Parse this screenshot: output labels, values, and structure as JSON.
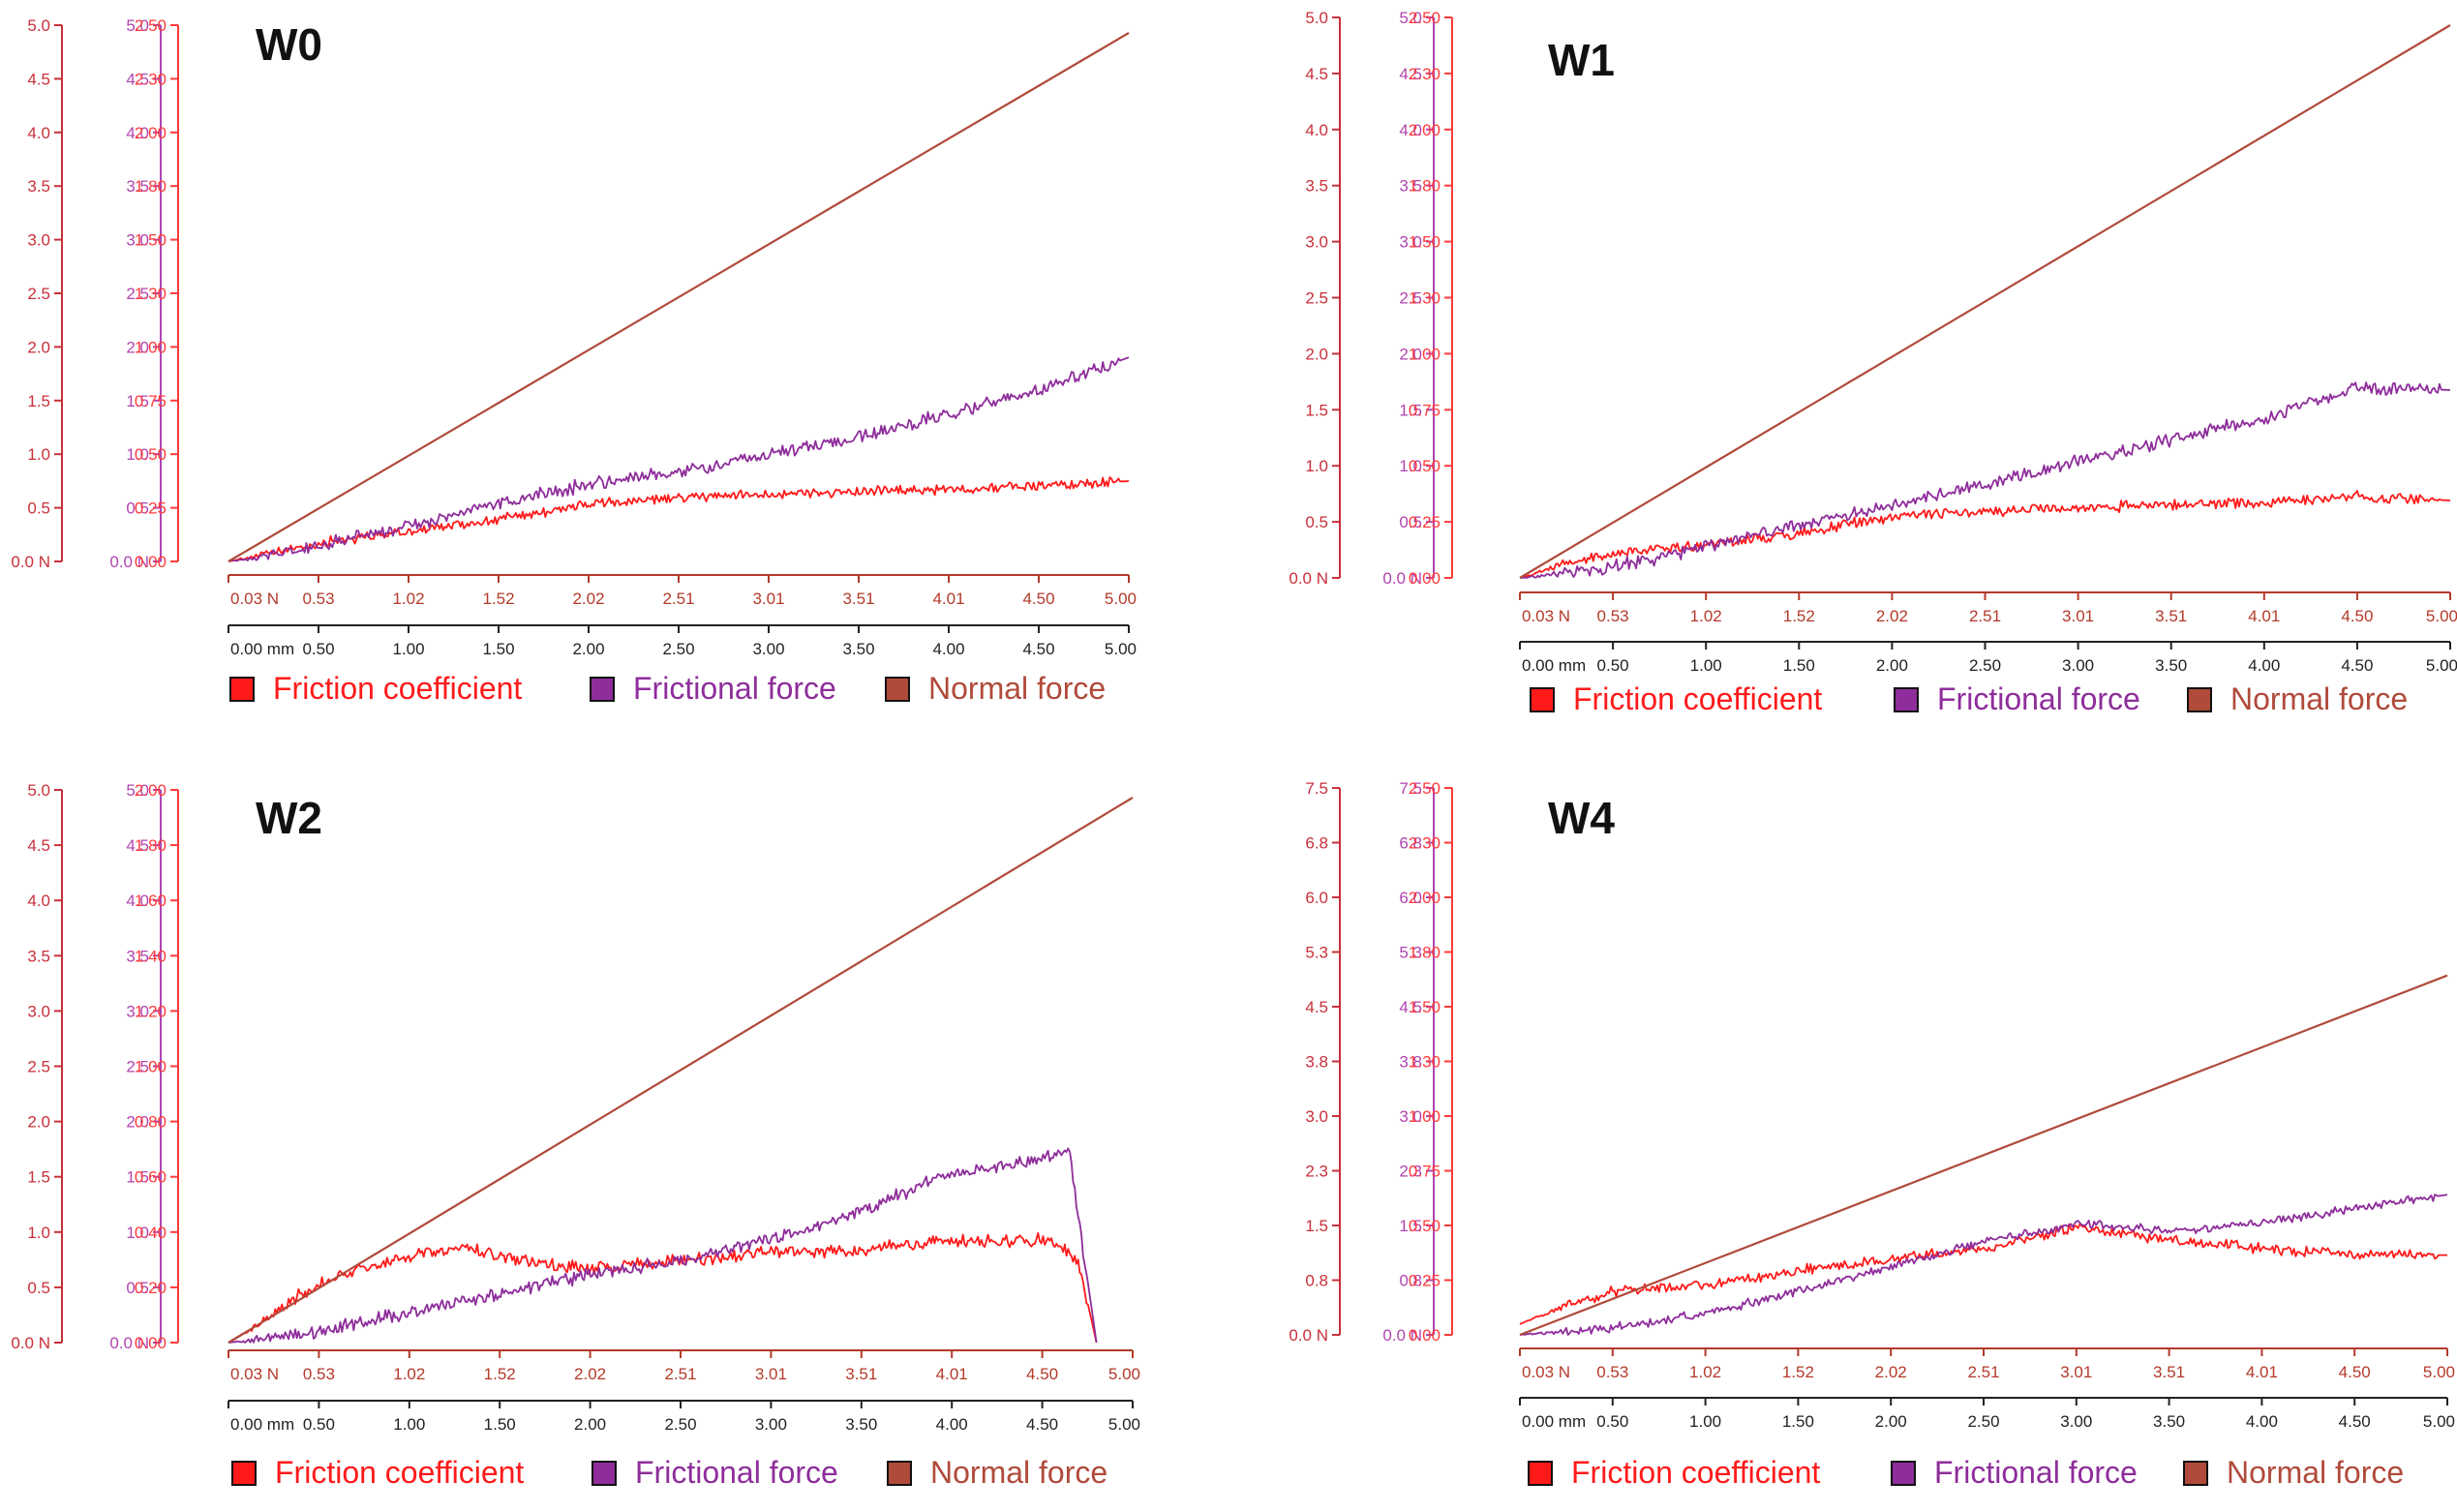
{
  "colors": {
    "friction": "#ff1a1a",
    "frictional": "#8e2d9b",
    "normal": "#b04a3a",
    "axis_n": "#c8303a",
    "axis_f": "#b045b0",
    "axis_mu": "#ff3a3a",
    "axis_x": "#b33a2a",
    "axis_mm": "#222222"
  },
  "chart_data": [
    {
      "type": "line",
      "title": "W0",
      "axis_normal_force": {
        "ticks": [
          "5.0",
          "4.5",
          "4.0",
          "3.5",
          "3.0",
          "2.5",
          "2.0",
          "1.5",
          "1.0",
          "0.5",
          "0.0 N"
        ],
        "range": [
          0,
          5.0
        ]
      },
      "axis_frictional_force": {
        "ticks": [
          "5.0",
          "4.5",
          "4.0",
          "3.5",
          "3.0",
          "2.5",
          "2.0",
          "1.5",
          "1.0",
          "0.5",
          "0.0 N"
        ],
        "range": [
          0,
          5.0
        ]
      },
      "axis_friction_coefficient": {
        "ticks": [
          "2.50",
          "2.30",
          "2.00",
          "1.80",
          "1.50",
          "1.30",
          "1.00",
          "0.75",
          "0.50",
          "0.25",
          "0.00"
        ],
        "range": [
          0,
          2.5
        ]
      },
      "axis_force_x": [
        "0.03 N",
        "0.53",
        "1.02",
        "1.52",
        "2.02",
        "2.51",
        "3.01",
        "3.51",
        "4.01",
        "4.50",
        "5.00"
      ],
      "axis_distance_x": [
        "0.00 mm",
        "0.50",
        "1.00",
        "1.50",
        "2.00",
        "2.50",
        "3.00",
        "3.50",
        "4.00",
        "4.50",
        "5.00"
      ],
      "xlim": [
        0,
        5.0
      ],
      "series": [
        {
          "name": "Friction coefficient",
          "axis": "mu",
          "points": [
            [
              0,
              0
            ],
            [
              0.3,
              0.05
            ],
            [
              0.6,
              0.1
            ],
            [
              1.0,
              0.14
            ],
            [
              1.5,
              0.2
            ],
            [
              2.0,
              0.27
            ],
            [
              2.5,
              0.3
            ],
            [
              3.0,
              0.32
            ],
            [
              3.5,
              0.33
            ],
            [
              4.0,
              0.34
            ],
            [
              4.5,
              0.36
            ],
            [
              5.0,
              0.38
            ]
          ]
        },
        {
          "name": "Frictional force",
          "axis": "f",
          "points": [
            [
              0,
              0
            ],
            [
              0.5,
              0.15
            ],
            [
              1.0,
              0.33
            ],
            [
              1.5,
              0.55
            ],
            [
              2.0,
              0.73
            ],
            [
              2.5,
              0.85
            ],
            [
              3.0,
              1.0
            ],
            [
              3.5,
              1.18
            ],
            [
              4.0,
              1.4
            ],
            [
              4.5,
              1.62
            ],
            [
              5.0,
              1.93
            ]
          ]
        },
        {
          "name": "Normal force",
          "axis": "n",
          "points": [
            [
              0,
              0
            ],
            [
              5.0,
              5.0
            ]
          ]
        }
      ],
      "legend": [
        "Friction coefficient",
        "Frictional force",
        "Normal force"
      ]
    },
    {
      "type": "line",
      "title": "W1",
      "axis_normal_force": {
        "ticks": [
          "5.0",
          "4.5",
          "4.0",
          "3.5",
          "3.0",
          "2.5",
          "2.0",
          "1.5",
          "1.0",
          "0.5",
          "0.0 N"
        ],
        "range": [
          0,
          5.0
        ]
      },
      "axis_frictional_force": {
        "ticks": [
          "5.0",
          "4.5",
          "4.0",
          "3.5",
          "3.0",
          "2.5",
          "2.0",
          "1.5",
          "1.0",
          "0.5",
          "0.0 N"
        ],
        "range": [
          0,
          5.0
        ]
      },
      "axis_friction_coefficient": {
        "ticks": [
          "2.50",
          "2.30",
          "2.00",
          "1.80",
          "1.50",
          "1.30",
          "1.00",
          "0.75",
          "0.50",
          "0.25",
          "0.00"
        ],
        "range": [
          0,
          2.5
        ]
      },
      "axis_force_x": [
        "0.03 N",
        "0.53",
        "1.02",
        "1.52",
        "2.02",
        "2.51",
        "3.01",
        "3.51",
        "4.01",
        "4.50",
        "5.00"
      ],
      "axis_distance_x": [
        "0.00 mm",
        "0.50",
        "1.00",
        "1.50",
        "2.00",
        "2.50",
        "3.00",
        "3.50",
        "4.00",
        "4.50",
        "5.00"
      ],
      "xlim": [
        0,
        5.0
      ],
      "series": [
        {
          "name": "Friction coefficient",
          "axis": "mu",
          "points": [
            [
              0,
              0
            ],
            [
              0.3,
              0.08
            ],
            [
              0.6,
              0.12
            ],
            [
              1.0,
              0.15
            ],
            [
              1.5,
              0.2
            ],
            [
              2.0,
              0.28
            ],
            [
              2.5,
              0.3
            ],
            [
              3.0,
              0.32
            ],
            [
              3.5,
              0.33
            ],
            [
              4.0,
              0.34
            ],
            [
              4.5,
              0.37
            ],
            [
              5.0,
              0.35
            ]
          ]
        },
        {
          "name": "Frictional force",
          "axis": "f",
          "points": [
            [
              0,
              0
            ],
            [
              0.5,
              0.1
            ],
            [
              1.0,
              0.28
            ],
            [
              1.5,
              0.48
            ],
            [
              2.0,
              0.65
            ],
            [
              2.5,
              0.85
            ],
            [
              3.0,
              1.05
            ],
            [
              3.5,
              1.25
            ],
            [
              4.0,
              1.45
            ],
            [
              4.5,
              1.72
            ],
            [
              5.0,
              1.7
            ]
          ]
        },
        {
          "name": "Normal force",
          "axis": "n",
          "points": [
            [
              0,
              0
            ],
            [
              5.0,
              5.0
            ]
          ]
        }
      ],
      "legend": [
        "Friction coefficient",
        "Frictional force",
        "Normal force"
      ]
    },
    {
      "type": "line",
      "title": "W2",
      "axis_normal_force": {
        "ticks": [
          "5.0",
          "4.5",
          "4.0",
          "3.5",
          "3.0",
          "2.5",
          "2.0",
          "1.5",
          "1.0",
          "0.5",
          "0.0 N"
        ],
        "range": [
          0,
          5.0
        ]
      },
      "axis_frictional_force": {
        "ticks": [
          "5.0",
          "4.5",
          "4.0",
          "3.5",
          "3.0",
          "2.5",
          "2.0",
          "1.5",
          "1.0",
          "0.5",
          "0.0 N"
        ],
        "range": [
          0,
          5.0
        ]
      },
      "axis_friction_coefficient": {
        "ticks": [
          "2.00",
          "1.80",
          "1.60",
          "1.40",
          "1.20",
          "1.00",
          "0.80",
          "0.60",
          "0.40",
          "0.20",
          "0.00"
        ],
        "range": [
          0,
          2.0
        ]
      },
      "axis_force_x": [
        "0.03 N",
        "0.53",
        "1.02",
        "1.52",
        "2.02",
        "2.51",
        "3.01",
        "3.51",
        "4.01",
        "4.50",
        "5.00"
      ],
      "axis_distance_x": [
        "0.00 mm",
        "0.50",
        "1.00",
        "1.50",
        "2.00",
        "2.50",
        "3.00",
        "3.50",
        "4.00",
        "4.50",
        "5.00"
      ],
      "xlim": [
        0,
        5.0
      ],
      "series": [
        {
          "name": "Friction coefficient",
          "axis": "mu",
          "points": [
            [
              0,
              0
            ],
            [
              0.2,
              0.08
            ],
            [
              0.4,
              0.18
            ],
            [
              0.6,
              0.24
            ],
            [
              0.9,
              0.3
            ],
            [
              1.3,
              0.35
            ],
            [
              1.6,
              0.3
            ],
            [
              2.0,
              0.27
            ],
            [
              2.5,
              0.3
            ],
            [
              3.0,
              0.33
            ],
            [
              3.5,
              0.34
            ],
            [
              3.9,
              0.37
            ],
            [
              4.2,
              0.37
            ],
            [
              4.55,
              0.38
            ],
            [
              4.7,
              0.3
            ],
            [
              4.8,
              0.0
            ]
          ]
        },
        {
          "name": "Frictional force",
          "axis": "f",
          "points": [
            [
              0,
              0
            ],
            [
              0.5,
              0.1
            ],
            [
              1.0,
              0.28
            ],
            [
              1.5,
              0.45
            ],
            [
              2.0,
              0.62
            ],
            [
              2.5,
              0.75
            ],
            [
              3.0,
              0.95
            ],
            [
              3.5,
              1.2
            ],
            [
              3.9,
              1.5
            ],
            [
              4.2,
              1.6
            ],
            [
              4.5,
              1.68
            ],
            [
              4.65,
              1.75
            ],
            [
              4.8,
              0.0
            ]
          ]
        },
        {
          "name": "Normal force",
          "axis": "n",
          "points": [
            [
              0,
              0
            ],
            [
              5.0,
              5.0
            ]
          ]
        }
      ],
      "legend": [
        "Friction coefficient",
        "Frictional force",
        "Normal force"
      ]
    },
    {
      "type": "line",
      "title": "W4",
      "axis_normal_force": {
        "ticks": [
          "7.5",
          "6.8",
          "6.0",
          "5.3",
          "4.5",
          "3.8",
          "3.0",
          "2.3",
          "1.5",
          "0.8",
          "0.0 N"
        ],
        "range": [
          0,
          7.5
        ]
      },
      "axis_frictional_force": {
        "ticks": [
          "7.5",
          "6.8",
          "6.0",
          "5.3",
          "4.5",
          "3.8",
          "3.0",
          "2.3",
          "1.5",
          "0.8",
          "0.0 N"
        ],
        "range": [
          0,
          7.5
        ]
      },
      "axis_friction_coefficient": {
        "ticks": [
          "2.50",
          "2.30",
          "2.00",
          "1.80",
          "1.50",
          "1.30",
          "1.00",
          "0.75",
          "0.50",
          "0.25",
          "0.00"
        ],
        "range": [
          0,
          2.5
        ]
      },
      "axis_force_x": [
        "0.03 N",
        "0.53",
        "1.02",
        "1.52",
        "2.02",
        "2.51",
        "3.01",
        "3.51",
        "4.01",
        "4.50",
        "5.00"
      ],
      "axis_distance_x": [
        "0.00 mm",
        "0.50",
        "1.00",
        "1.50",
        "2.00",
        "2.50",
        "3.00",
        "3.50",
        "4.00",
        "4.50",
        "5.00"
      ],
      "xlim": [
        0,
        5.0
      ],
      "series": [
        {
          "name": "Friction coefficient",
          "axis": "mu",
          "points": [
            [
              0,
              0.05
            ],
            [
              0.2,
              0.12
            ],
            [
              0.5,
              0.2
            ],
            [
              1.0,
              0.23
            ],
            [
              1.5,
              0.3
            ],
            [
              2.0,
              0.35
            ],
            [
              2.5,
              0.4
            ],
            [
              3.0,
              0.5
            ],
            [
              3.5,
              0.44
            ],
            [
              4.0,
              0.4
            ],
            [
              4.5,
              0.37
            ],
            [
              5.0,
              0.37
            ]
          ]
        },
        {
          "name": "Frictional force",
          "axis": "f",
          "points": [
            [
              0,
              0
            ],
            [
              0.5,
              0.1
            ],
            [
              1.0,
              0.3
            ],
            [
              1.5,
              0.6
            ],
            [
              2.0,
              0.95
            ],
            [
              2.5,
              1.3
            ],
            [
              3.0,
              1.55
            ],
            [
              3.5,
              1.45
            ],
            [
              4.0,
              1.55
            ],
            [
              4.5,
              1.75
            ],
            [
              5.0,
              1.95
            ]
          ]
        },
        {
          "name": "Normal force",
          "axis": "n",
          "points": [
            [
              0,
              0
            ],
            [
              5.0,
              5.0
            ]
          ]
        }
      ],
      "legend": [
        "Friction coefficient",
        "Frictional force",
        "Normal force"
      ]
    }
  ]
}
